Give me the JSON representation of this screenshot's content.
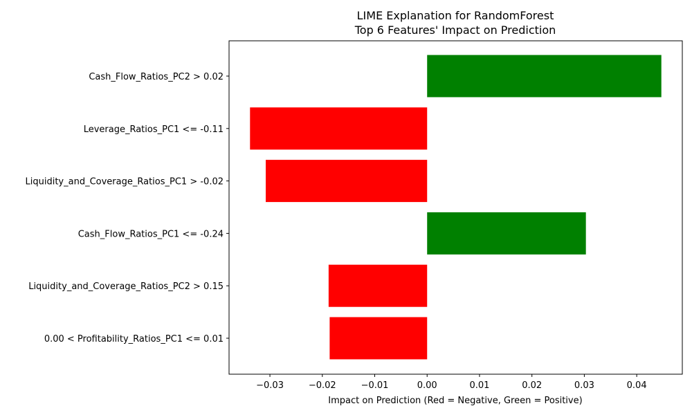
{
  "chart_data": {
    "type": "bar",
    "orientation": "horizontal",
    "title_lines": [
      "LIME Explanation for RandomForest",
      "Top 6 Features' Impact on Prediction"
    ],
    "xlabel": "Impact on Prediction (Red = Negative, Green = Positive)",
    "ylabel": "",
    "categories": [
      "Cash_Flow_Ratios_PC2 > 0.02",
      "Leverage_Ratios_PC1 <= -0.11",
      "Liquidity_and_Coverage_Ratios_PC1 > -0.02",
      "Cash_Flow_Ratios_PC1 <= -0.24",
      "Liquidity_and_Coverage_Ratios_PC2 > 0.15",
      "0.00 < Profitability_Ratios_PC1 <= 0.01"
    ],
    "values": [
      0.0447,
      -0.0338,
      -0.0308,
      0.0303,
      -0.0188,
      -0.0186
    ],
    "xlim": [
      -0.0378,
      0.0487
    ],
    "xticks": [
      -0.03,
      -0.02,
      -0.01,
      0.0,
      0.01,
      0.02,
      0.03,
      0.04
    ],
    "xtick_labels": [
      "−0.03",
      "−0.02",
      "−0.01",
      "0.00",
      "0.01",
      "0.02",
      "0.03",
      "0.04"
    ],
    "colors": {
      "positive": "#008000",
      "negative": "#ff0000"
    },
    "grid": false,
    "legend": false
  }
}
